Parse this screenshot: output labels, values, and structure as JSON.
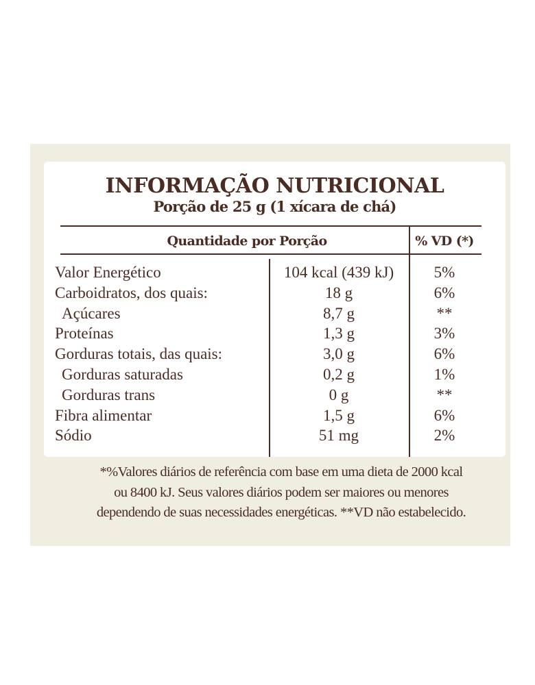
{
  "title": "INFORMAÇÃO NUTRICIONAL",
  "subtitle": "Porção de 25 g (1 xícara de chá)",
  "header": {
    "quantity": "Quantidade por Porção",
    "vd": "% VD (*)"
  },
  "rows": [
    {
      "name": "Valor Energético",
      "qty": "104 kcal (439 kJ)",
      "vd": "5%"
    },
    {
      "name": "Carboidratos, dos quais:",
      "qty": "18 g",
      "vd": "6%"
    },
    {
      "name": "Açúcares",
      "qty": "8,7 g",
      "vd": "**"
    },
    {
      "name": "Proteínas",
      "qty": "1,3 g",
      "vd": "3%"
    },
    {
      "name": "Gorduras totais, das quais:",
      "qty": "3,0 g",
      "vd": "6%"
    },
    {
      "name": "Gorduras saturadas",
      "qty": "0,2 g",
      "vd": "1%"
    },
    {
      "name": "Gorduras trans",
      "qty": "0 g",
      "vd": "**"
    },
    {
      "name": "Fibra alimentar",
      "qty": "1,5 g",
      "vd": "6%"
    },
    {
      "name": "Sódio",
      "qty": "51 mg",
      "vd": "2%"
    }
  ],
  "footnote": [
    "*%Valores diários de referência com base em uma dieta de 2000 kcal",
    "ou 8400 kJ. Seus valores diários podem ser maiores ou menores",
    "dependendo de suas necessidades energéticas. **VD não estabelecido."
  ],
  "colors": {
    "text": "#4a2c22",
    "panel": "#efeee0",
    "card": "#ffffff"
  }
}
